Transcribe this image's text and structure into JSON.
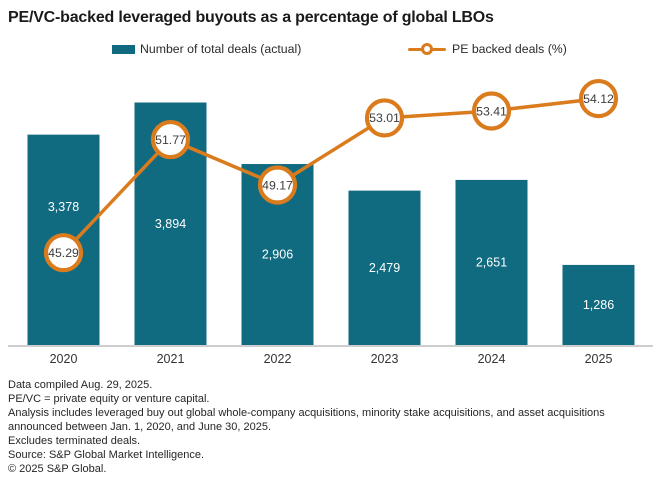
{
  "title": "PE/VC-backed leveraged buyouts as a percentage of global LBOs",
  "legend": {
    "bars": "Number of total deals (actual)",
    "line": "PE backed deals (%)"
  },
  "chart_data": {
    "type": "bar",
    "subtype": "bar-with-line-overlay",
    "categories": [
      "2020",
      "2021",
      "2022",
      "2023",
      "2024",
      "2025"
    ],
    "series": [
      {
        "name": "Number of total deals (actual)",
        "type": "bar",
        "values": [
          3378,
          3894,
          2906,
          2479,
          2651,
          1286
        ]
      },
      {
        "name": "PE backed deals (%)",
        "type": "line",
        "values": [
          45.29,
          51.77,
          49.17,
          53.01,
          53.41,
          54.12
        ]
      }
    ],
    "title": "PE/VC-backed leveraged buyouts as a percentage of global LBOs",
    "xlabel": "",
    "ylabel": "",
    "bar_ylim": [
      0,
      4400
    ],
    "pct_ylim": [
      40,
      55.7
    ],
    "grid": false,
    "legend_position": "top",
    "data_labels": true
  },
  "notes": [
    "Data compiled Aug. 29, 2025.",
    "PE/VC = private equity or venture capital.",
    "Analysis includes leveraged buy out global whole-company acquisitions, minority stake acquisitions, and asset acquisitions announced between Jan. 1, 2020, and June 30, 2025.",
    "Excludes terminated deals.",
    "Source: S&P Global Market Intelligence.",
    "© 2025 S&P Global."
  ],
  "colors": {
    "bar_teal": "#106A80",
    "line_orange": "#DA7C1E",
    "axis_gray": "#BDBDBD",
    "title_text": "#1A1A1A",
    "bar_label_text": "#FFFFFF",
    "marker_label_text": "#3D3D3D",
    "year_label_text": "#333333"
  }
}
